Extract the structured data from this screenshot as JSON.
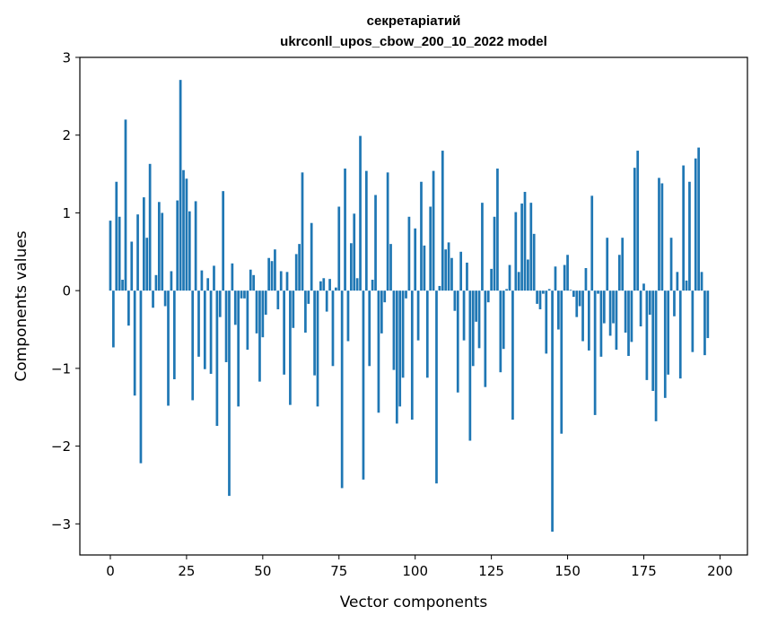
{
  "chart_data": {
    "type": "bar",
    "title": [
      "секретаріатий",
      "ukrconll_upos_cbow_200_10_2022 model"
    ],
    "xlabel": "Vector components",
    "ylabel": "Components values",
    "xlim": [
      -10,
      209
    ],
    "ylim": [
      -3.4,
      3.0
    ],
    "xticks": [
      0,
      25,
      50,
      75,
      100,
      125,
      150,
      175,
      200
    ],
    "yticks": [
      -3,
      -2,
      -1,
      0,
      1,
      2,
      3
    ],
    "ytick_labels": [
      "−3",
      "−2",
      "−1",
      "0",
      "1",
      "2",
      "3"
    ],
    "xtick_labels": [
      "0",
      "25",
      "50",
      "75",
      "100",
      "125",
      "150",
      "175",
      "200"
    ],
    "bar_color": "#1f77b4",
    "grid": false,
    "values": [
      0.9,
      -0.73,
      1.4,
      0.95,
      0.14,
      2.2,
      -0.45,
      0.63,
      -1.35,
      0.98,
      -2.22,
      1.2,
      0.68,
      1.63,
      -0.22,
      0.2,
      1.14,
      1.0,
      -0.2,
      -1.48,
      0.25,
      -1.14,
      1.16,
      2.71,
      1.55,
      1.44,
      1.02,
      -1.41,
      1.15,
      -0.85,
      0.26,
      -1.01,
      0.16,
      -1.07,
      0.32,
      -1.74,
      -0.34,
      1.28,
      -0.92,
      -2.64,
      0.35,
      -0.44,
      -1.49,
      -0.1,
      -0.1,
      -0.76,
      0.27,
      0.2,
      -0.55,
      -1.17,
      -0.6,
      -0.31,
      0.42,
      0.38,
      0.53,
      -0.24,
      0.25,
      -1.08,
      0.24,
      -1.47,
      -0.48,
      0.47,
      0.6,
      1.52,
      -0.54,
      -0.17,
      0.87,
      -1.09,
      -1.49,
      0.12,
      0.16,
      -0.27,
      0.15,
      -0.97,
      0.04,
      1.08,
      -2.54,
      1.57,
      -0.65,
      0.61,
      0.99,
      0.16,
      1.99,
      -2.43,
      1.54,
      -0.97,
      0.14,
      1.23,
      -1.57,
      -0.55,
      -0.15,
      1.52,
      0.6,
      -1.02,
      -1.71,
      -1.49,
      -1.12,
      -0.1,
      0.95,
      -1.66,
      0.8,
      -0.64,
      1.4,
      0.58,
      -1.12,
      1.08,
      1.54,
      -2.48,
      0.06,
      1.8,
      0.53,
      0.62,
      0.42,
      -0.26,
      -1.31,
      0.5,
      -0.64,
      0.36,
      -1.93,
      -0.97,
      -0.4,
      -0.74,
      1.13,
      -1.24,
      -0.15,
      0.28,
      0.95,
      1.57,
      -1.05,
      -0.75,
      0.02,
      0.33,
      -1.66,
      1.01,
      0.24,
      1.12,
      1.27,
      0.4,
      1.13,
      0.73,
      -0.17,
      -0.24,
      -0.04,
      -0.81,
      0.02,
      -3.1,
      0.31,
      -0.5,
      -1.84,
      0.33,
      0.46,
      0.01,
      -0.08,
      -0.34,
      -0.2,
      -0.65,
      0.29,
      -0.77,
      1.22,
      -1.6,
      -0.04,
      -0.85,
      -0.42,
      0.68,
      -0.58,
      -0.42,
      -0.76,
      0.46,
      0.68,
      -0.54,
      -0.84,
      -0.66,
      1.58,
      1.8,
      -0.46,
      0.09,
      -1.15,
      -0.31,
      -1.29,
      -1.68,
      1.45,
      1.38,
      -1.38,
      -1.08,
      0.68,
      -0.33,
      0.24,
      -1.13,
      1.61,
      0.13,
      1.4,
      -0.79,
      1.7,
      1.84,
      0.24,
      -0.83,
      -0.61
    ]
  }
}
